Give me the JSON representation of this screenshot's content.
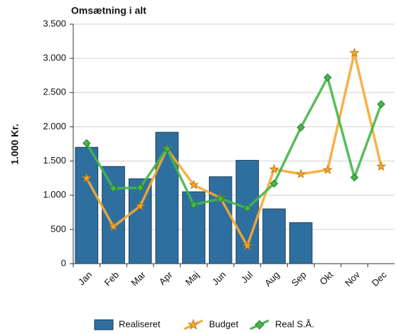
{
  "chart_data": {
    "type": "bar_line",
    "title": "Omsætning i alt",
    "y_label": "1.000 Kr.",
    "categories": [
      "Jan",
      "Feb",
      "Mar",
      "Apr",
      "Maj",
      "Jun",
      "Jul",
      "Aug",
      "Sep",
      "Okt",
      "Nov",
      "Dec"
    ],
    "series": [
      {
        "name": "Realiseret",
        "type": "bar",
        "color": "#2f6f9f",
        "values": [
          1700,
          1420,
          1240,
          1920,
          1050,
          1270,
          1510,
          800,
          600,
          null,
          null,
          null
        ]
      },
      {
        "name": "Budget",
        "type": "line",
        "color": "#f7a833",
        "values": [
          1250,
          540,
          840,
          1680,
          1150,
          960,
          260,
          1380,
          1310,
          1370,
          3080,
          1420
        ]
      },
      {
        "name": "Real S.Å.",
        "type": "line",
        "color": "#45b649",
        "values": [
          1760,
          1100,
          1110,
          1680,
          860,
          950,
          810,
          1170,
          1990,
          2720,
          1260,
          2330
        ]
      }
    ],
    "ylim": [
      0,
      3500
    ],
    "yticks": [
      0,
      500,
      {
        "value": 1000,
        "label": "1.000"
      },
      {
        "value": 1500,
        "label": "1.500"
      },
      {
        "value": 2000,
        "label": "2.000"
      },
      {
        "value": 2500,
        "label": "2.500"
      },
      {
        "value": 3000,
        "label": "3.000"
      },
      {
        "value": 3500,
        "label": "3.500"
      }
    ],
    "legend": "bottom"
  }
}
